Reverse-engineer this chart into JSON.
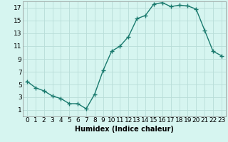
{
  "x": [
    0,
    1,
    2,
    3,
    4,
    5,
    6,
    7,
    8,
    9,
    10,
    11,
    12,
    13,
    14,
    15,
    16,
    17,
    18,
    19,
    20,
    21,
    22,
    23
  ],
  "y": [
    5.5,
    4.5,
    4.0,
    3.2,
    2.8,
    2.0,
    2.0,
    1.2,
    3.5,
    7.2,
    10.2,
    11.0,
    12.5,
    15.3,
    15.8,
    17.6,
    17.8,
    17.2,
    17.4,
    17.3,
    16.8,
    13.5,
    10.2,
    9.5
  ],
  "line_color": "#1a7a6e",
  "marker": "+",
  "marker_size": 4,
  "marker_lw": 1.0,
  "line_width": 1.0,
  "bg_color": "#d6f5f0",
  "grid_color": "#b8ddd8",
  "xlabel": "Humidex (Indice chaleur)",
  "xlabel_fontsize": 7,
  "xlim": [
    -0.5,
    23.5
  ],
  "ylim": [
    0,
    18
  ],
  "yticks": [
    1,
    3,
    5,
    7,
    9,
    11,
    13,
    15,
    17
  ],
  "xticks": [
    0,
    1,
    2,
    3,
    4,
    5,
    6,
    7,
    8,
    9,
    10,
    11,
    12,
    13,
    14,
    15,
    16,
    17,
    18,
    19,
    20,
    21,
    22,
    23
  ],
  "tick_fontsize": 6.5,
  "spine_color": "#888888"
}
